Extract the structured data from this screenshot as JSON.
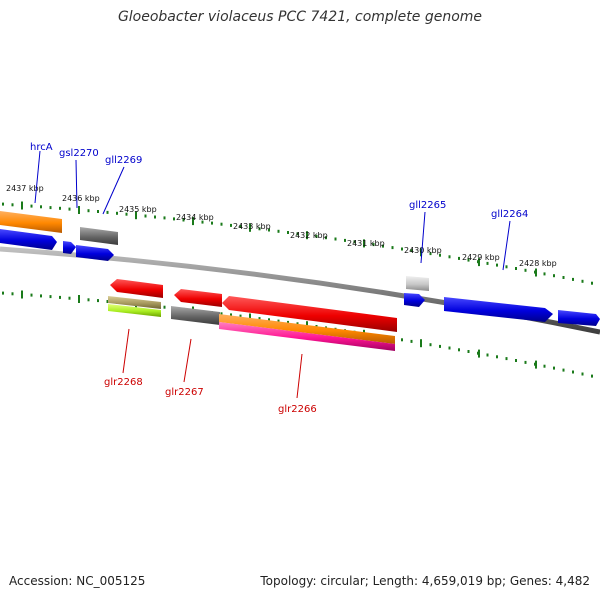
{
  "title": "Gloeobacter violaceus PCC 7421, complete genome",
  "footer": {
    "accession": "Accession: NC_005125",
    "topology": "Topology: circular; Length: 4,659,019 bp; Genes: 4,482"
  },
  "scale": {
    "unit": "kbp",
    "tick_labels": [
      "2437 kbp",
      "2436 kbp",
      "2435 kbp",
      "2434 kbp",
      "2433 kbp",
      "2432 kbp",
      "2431 kbp",
      "2430 kbp",
      "2429 kbp",
      "2428 kbp"
    ]
  },
  "genes": [
    {
      "id": "hrcA",
      "name": "hrcA",
      "strand": "minus",
      "color": "#0000cc"
    },
    {
      "id": "gsl2270",
      "name": "gsl2270",
      "strand": "minus",
      "color": "#0000cc"
    },
    {
      "id": "gll2269",
      "name": "gll2269",
      "strand": "minus",
      "color": "#0000cc"
    },
    {
      "id": "gll2265",
      "name": "gll2265",
      "strand": "minus",
      "color": "#0000cc"
    },
    {
      "id": "gll2264",
      "name": "gll2264",
      "strand": "minus",
      "color": "#0000cc"
    },
    {
      "id": "glr2268",
      "name": "glr2268",
      "strand": "plus",
      "color": "#cc0000"
    },
    {
      "id": "glr2267",
      "name": "glr2267",
      "strand": "plus",
      "color": "#cc0000"
    },
    {
      "id": "glr2266",
      "name": "glr2266",
      "strand": "plus",
      "color": "#cc0000"
    }
  ],
  "colors": {
    "scale_tick": "#1a7a1a",
    "backbone": "#7f7f7f",
    "label_minus": "#0000cc",
    "label_plus": "#cc0000"
  }
}
